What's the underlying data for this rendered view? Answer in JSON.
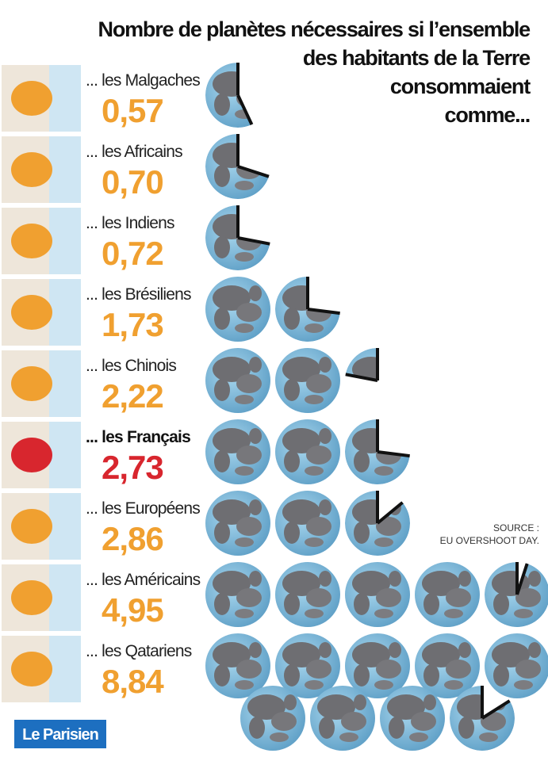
{
  "chart_data": {
    "type": "pictogram",
    "title": [
      "Nombre de planètes nécessaires si l’ensemble",
      "des habitants de la Terre",
      "consommaient",
      "comme..."
    ],
    "categories": [
      "... les Malgaches",
      "... les Africains",
      "... les Indiens",
      "... les Brésiliens",
      "... les Chinois",
      "... les Français",
      "... les Européens",
      "... les Américains",
      "... les Qatariens"
    ],
    "values": [
      0.57,
      0.7,
      0.72,
      1.73,
      2.22,
      2.73,
      2.86,
      4.95,
      8.84
    ],
    "value_labels": [
      "0,57",
      "0,70",
      "0,72",
      "1,73",
      "2,22",
      "2,73",
      "2,86",
      "4,95",
      "8,84"
    ],
    "color": "#f0a030",
    "colors": [
      "#f0a030",
      "#f0a030",
      "#f0a030",
      "#f0a030",
      "#f0a030",
      "#d8262e",
      "#f0a030",
      "#f0a030",
      "#f0a030"
    ],
    "source": [
      "SOURCE :",
      "EU OVERSHOOT DAY."
    ],
    "logo": "Le Parisien"
  }
}
